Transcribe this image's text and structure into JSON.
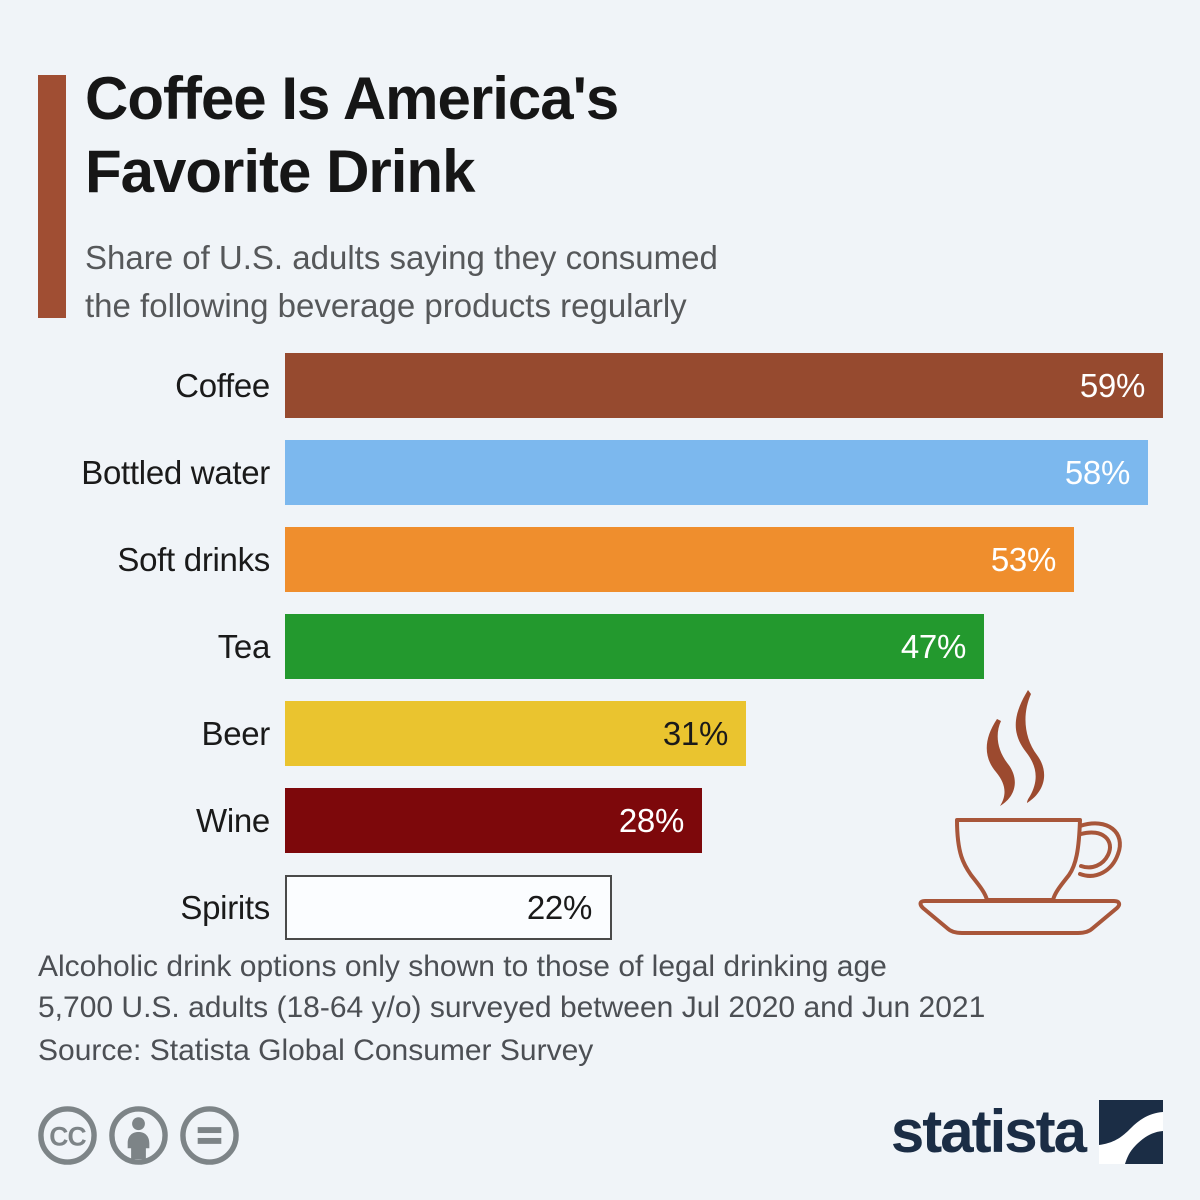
{
  "page": {
    "background": "#f0f4f8"
  },
  "header": {
    "accent_color": "#a04e33",
    "title_lines": [
      "Coffee Is America's",
      "Favorite Drink"
    ],
    "subtitle_lines": [
      "Share of U.S. adults saying they consumed",
      "the following beverage products regularly"
    ]
  },
  "chart_data": {
    "type": "bar",
    "orientation": "horizontal",
    "title": "Coffee Is America's Favorite Drink",
    "subtitle": "Share of U.S. adults saying they consumed the following beverage products regularly",
    "unit": "percent",
    "xlim": [
      0,
      60
    ],
    "grid": false,
    "categories": [
      "Coffee",
      "Bottled water",
      "Soft drinks",
      "Tea",
      "Beer",
      "Wine",
      "Spirits"
    ],
    "values": [
      59,
      58,
      53,
      47,
      31,
      28,
      22
    ],
    "bars": [
      {
        "label": "Coffee",
        "value": 59,
        "value_label": "59%",
        "color": "#964a2f",
        "value_text_color": "#ffffff"
      },
      {
        "label": "Bottled water",
        "value": 58,
        "value_label": "58%",
        "color": "#7cb8ee",
        "value_text_color": "#ffffff"
      },
      {
        "label": "Soft drinks",
        "value": 53,
        "value_label": "53%",
        "color": "#ef8e2d",
        "value_text_color": "#ffffff"
      },
      {
        "label": "Tea",
        "value": 47,
        "value_label": "47%",
        "color": "#23992e",
        "value_text_color": "#ffffff"
      },
      {
        "label": "Beer",
        "value": 31,
        "value_label": "31%",
        "color": "#eac42f",
        "value_text_color": "#1a1a1a"
      },
      {
        "label": "Wine",
        "value": 28,
        "value_label": "28%",
        "color": "#7d080b",
        "value_text_color": "#ffffff"
      },
      {
        "label": "Spirits",
        "value": 22,
        "value_label": "22%",
        "color": "#fbfdff",
        "value_text_color": "#1a1a1a",
        "border_color": "#4a4a4a"
      }
    ]
  },
  "footnotes": {
    "line1": "Alcoholic drink options only shown to those of legal drinking age",
    "line2": "5,700 U.S. adults (18-64 y/o) surveyed between Jul 2020 and Jun 2021",
    "source": "Source: Statista Global Consumer Survey"
  },
  "branding": {
    "wordmark": "statista",
    "logo_color": "#1b2d45"
  },
  "license": {
    "cc_text": "CC",
    "icon_color": "#7d8487"
  },
  "decor": {
    "coffee_cup_outline_color": "#a8563a",
    "steam_color": "#9c4a2f"
  }
}
